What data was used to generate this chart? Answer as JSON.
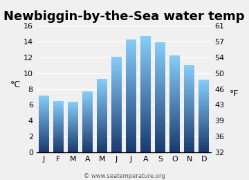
{
  "title": "Newbiggin-by-the-Sea water temp",
  "months": [
    "J",
    "F",
    "M",
    "A",
    "M",
    "J",
    "J",
    "A",
    "S",
    "O",
    "N",
    "D"
  ],
  "values_c": [
    7.2,
    6.5,
    6.4,
    7.7,
    9.3,
    12.1,
    14.3,
    14.7,
    13.9,
    12.3,
    11.0,
    9.2
  ],
  "ylim_c": [
    0,
    16
  ],
  "yticks_c": [
    0,
    2,
    4,
    6,
    8,
    10,
    12,
    14,
    16
  ],
  "yticks_f": [
    32,
    36,
    39,
    43,
    46,
    50,
    54,
    57,
    61
  ],
  "ylabel_left": "°C",
  "ylabel_right": "°F",
  "bar_color_top": "#87CEFA",
  "bar_color_bottom": "#1a3a6e",
  "bg_color": "#f0f0f0",
  "grid_color": "#ffffff",
  "title_fontsize": 13,
  "axis_fontsize": 9,
  "tick_fontsize": 8,
  "watermark": "© www.seatemperature.org"
}
